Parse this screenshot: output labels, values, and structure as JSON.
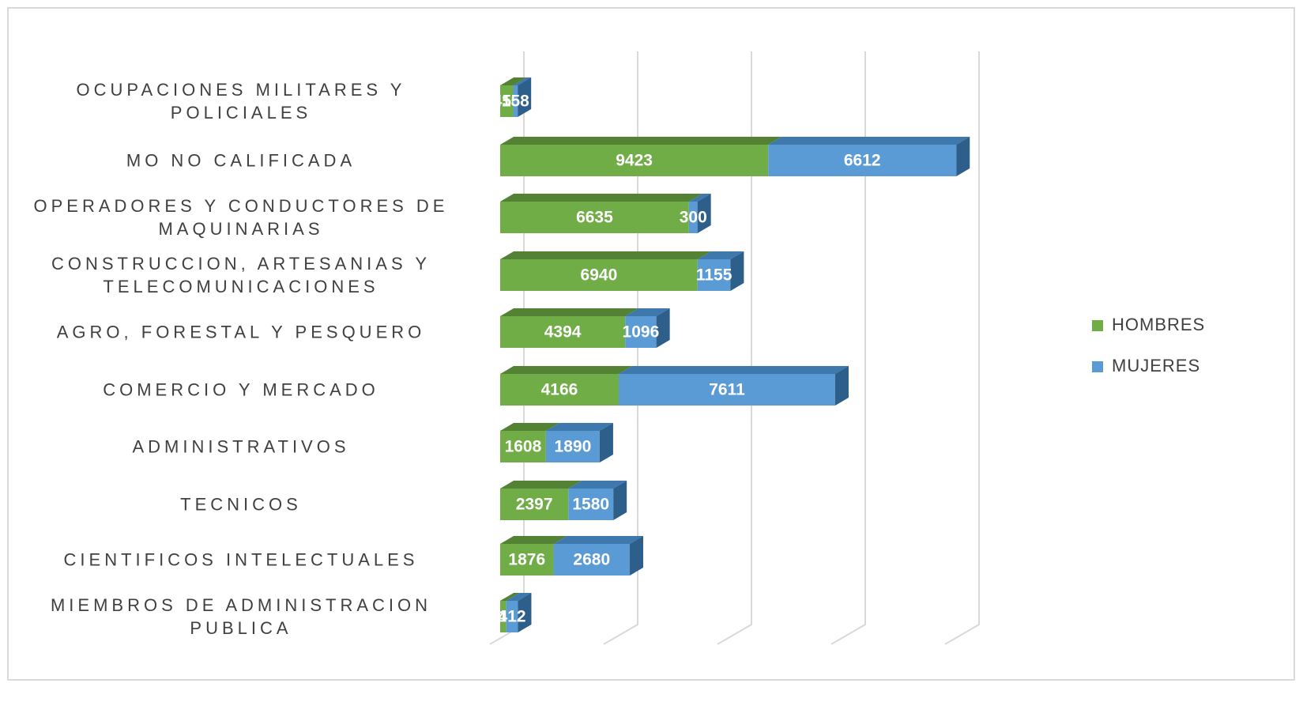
{
  "chart_data": {
    "type": "bar3d_stacked_horizontal",
    "categories": [
      "OCUPACIONES MILITARES Y POLICIALES",
      "MO NO CALIFICADA",
      "OPERADORES Y CONDUCTORES DE MAQUINARIAS",
      "CONSTRUCCION, ARTESANIAS Y TELECOMUNICACIONES",
      "AGRO, FORESTAL Y PESQUERO",
      "COMERCIO Y MERCADO",
      "ADMINISTRATIVOS",
      "TECNICOS",
      "CIENTIFICOS INTELECTUALES",
      "MIEMBROS DE ADMINISTRACION PUBLICA"
    ],
    "series": [
      {
        "name": "HOMBRES",
        "color": "#70ad47",
        "top": "#548235",
        "side": "#4a7a2f",
        "values": [
          458,
          9423,
          6635,
          6940,
          4394,
          4166,
          1608,
          2397,
          1876,
          212
        ]
      },
      {
        "name": "MUJERES",
        "color": "#5b9bd5",
        "top": "#3f78ad",
        "side": "#2e5f8a",
        "values": [
          158,
          6612,
          300,
          1155,
          1096,
          7611,
          1890,
          1580,
          2680,
          412
        ]
      }
    ],
    "xlim": [
      0,
      16000
    ],
    "xticks": [
      0,
      4000,
      8000,
      12000,
      16000
    ],
    "grid": true,
    "legend": "right"
  }
}
